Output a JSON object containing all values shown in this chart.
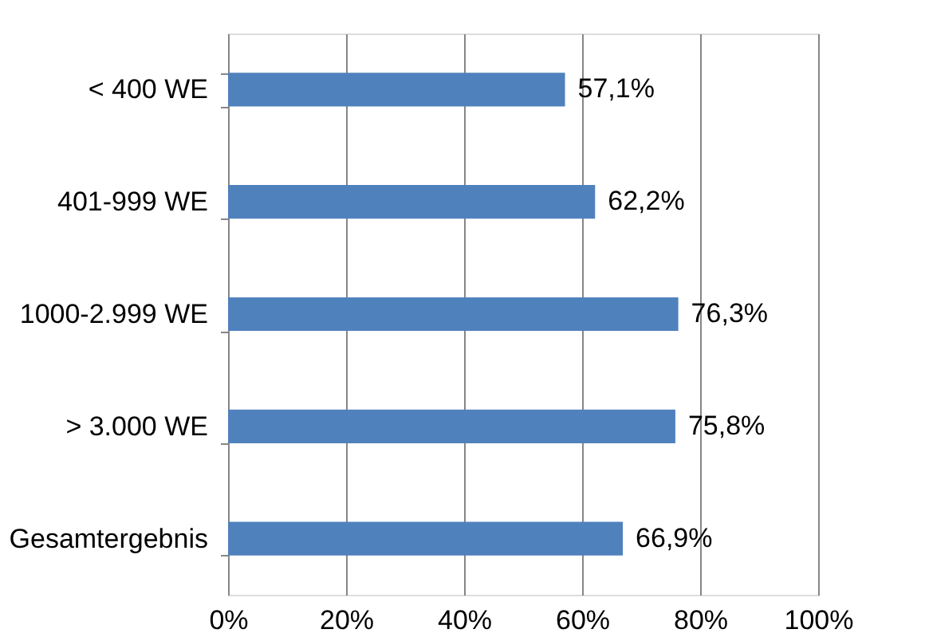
{
  "chart_data": {
    "type": "bar",
    "orientation": "horizontal",
    "categories": [
      "< 400 WE",
      "401-999 WE",
      "1000-2.999 WE",
      "> 3.000 WE",
      "Gesamtergebnis"
    ],
    "values": [
      57.1,
      62.2,
      76.3,
      75.8,
      66.9
    ],
    "value_labels": [
      "57,1%",
      "62,2%",
      "76,3%",
      "75,8%",
      "66,9%"
    ],
    "color": "#4f81bd",
    "xlim": [
      0,
      100
    ],
    "xticks": [
      {
        "value": 0,
        "label": "0%"
      },
      {
        "value": 20,
        "label": "20%"
      },
      {
        "value": 40,
        "label": "40%"
      },
      {
        "value": 60,
        "label": "60%"
      },
      {
        "value": 80,
        "label": "80%"
      },
      {
        "value": 100,
        "label": "100%"
      }
    ],
    "grid": "x"
  }
}
